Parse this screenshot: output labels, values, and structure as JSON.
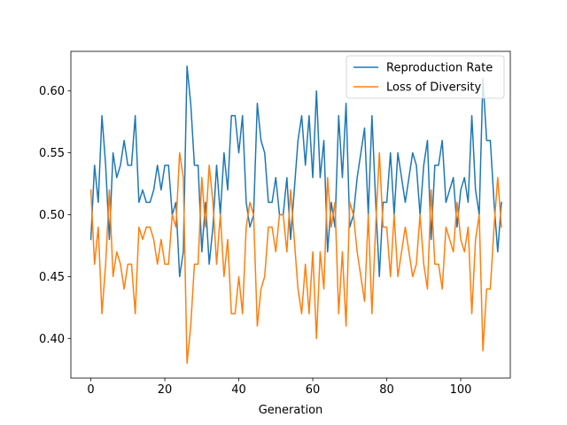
{
  "chart_data": {
    "type": "line",
    "title": "",
    "xlabel": "Generation",
    "ylabel": "",
    "xlim": [
      -5.4,
      113.4
    ],
    "ylim": [
      0.368,
      0.632
    ],
    "xticks": [
      0,
      20,
      40,
      60,
      80,
      100
    ],
    "yticks": [
      0.4,
      0.45,
      0.5,
      0.55,
      0.6
    ],
    "ytick_labels": [
      "0.40",
      "0.45",
      "0.50",
      "0.55",
      "0.60"
    ],
    "grid": false,
    "legend_position": "top-right",
    "series": [
      {
        "name": "Reproduction Rate",
        "color": "#1f77b4",
        "x_start": 0,
        "values": [
          0.48,
          0.54,
          0.51,
          0.58,
          0.54,
          0.48,
          0.55,
          0.53,
          0.54,
          0.56,
          0.54,
          0.54,
          0.58,
          0.51,
          0.52,
          0.51,
          0.51,
          0.52,
          0.54,
          0.52,
          0.54,
          0.54,
          0.5,
          0.51,
          0.45,
          0.47,
          0.62,
          0.59,
          0.54,
          0.54,
          0.47,
          0.51,
          0.46,
          0.49,
          0.54,
          0.5,
          0.55,
          0.52,
          0.58,
          0.58,
          0.55,
          0.58,
          0.51,
          0.49,
          0.5,
          0.59,
          0.56,
          0.55,
          0.51,
          0.51,
          0.53,
          0.5,
          0.5,
          0.53,
          0.48,
          0.52,
          0.56,
          0.58,
          0.54,
          0.58,
          0.53,
          0.6,
          0.53,
          0.56,
          0.47,
          0.51,
          0.49,
          0.58,
          0.53,
          0.59,
          0.49,
          0.5,
          0.53,
          0.55,
          0.57,
          0.5,
          0.58,
          0.51,
          0.45,
          0.51,
          0.51,
          0.55,
          0.5,
          0.55,
          0.53,
          0.51,
          0.53,
          0.55,
          0.54,
          0.5,
          0.54,
          0.56,
          0.48,
          0.54,
          0.54,
          0.56,
          0.51,
          0.52,
          0.53,
          0.49,
          0.52,
          0.53,
          0.51,
          0.58,
          0.52,
          0.5,
          0.61,
          0.56,
          0.56,
          0.51,
          0.47,
          0.51
        ]
      },
      {
        "name": "Loss of Diversity",
        "color": "#ff7f0e",
        "x_start": 0,
        "values": [
          0.52,
          0.46,
          0.49,
          0.42,
          0.46,
          0.52,
          0.45,
          0.47,
          0.46,
          0.44,
          0.46,
          0.46,
          0.42,
          0.49,
          0.48,
          0.49,
          0.49,
          0.48,
          0.46,
          0.48,
          0.46,
          0.46,
          0.5,
          0.49,
          0.55,
          0.53,
          0.38,
          0.41,
          0.46,
          0.46,
          0.53,
          0.49,
          0.54,
          0.51,
          0.46,
          0.5,
          0.45,
          0.48,
          0.42,
          0.42,
          0.45,
          0.42,
          0.49,
          0.51,
          0.5,
          0.41,
          0.44,
          0.45,
          0.49,
          0.49,
          0.47,
          0.5,
          0.5,
          0.47,
          0.52,
          0.48,
          0.44,
          0.42,
          0.46,
          0.42,
          0.47,
          0.4,
          0.47,
          0.44,
          0.53,
          0.49,
          0.51,
          0.42,
          0.47,
          0.41,
          0.51,
          0.5,
          0.47,
          0.45,
          0.43,
          0.5,
          0.42,
          0.49,
          0.55,
          0.49,
          0.49,
          0.45,
          0.5,
          0.45,
          0.47,
          0.49,
          0.47,
          0.45,
          0.46,
          0.5,
          0.46,
          0.44,
          0.52,
          0.46,
          0.46,
          0.44,
          0.49,
          0.48,
          0.47,
          0.51,
          0.48,
          0.47,
          0.49,
          0.42,
          0.48,
          0.5,
          0.39,
          0.44,
          0.44,
          0.49,
          0.53,
          0.49
        ]
      }
    ]
  }
}
